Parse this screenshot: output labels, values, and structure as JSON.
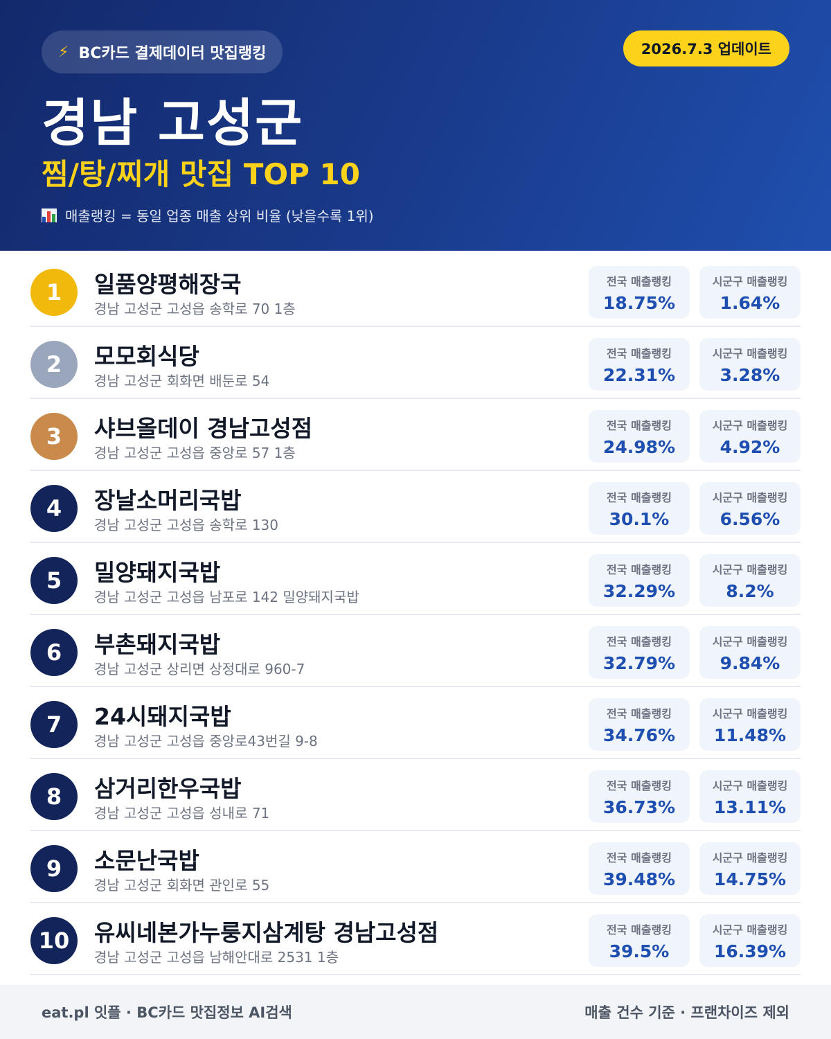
{
  "header": {
    "brand_icon": "lightning-icon",
    "brand_label": "BC카드 결제데이터 맛집랭킹",
    "date_label": "2026.7.3 업데이트",
    "title": "경남 고성군",
    "subtitle": "찜/탕/찌개 맛집 TOP 10",
    "note_icon": "bar-chart-icon",
    "note": "매출랭킹 = 동일 업종 매출 상위 비율 (낮을수록 1위)"
  },
  "colors": {
    "header_bg": "#1a3c8e",
    "accent_yellow": "#fcd21a",
    "gold": "#f0b90b",
    "silver": "#9aa6bb",
    "bronze": "#c98a4b",
    "navy": "#13245a",
    "value_blue": "#1e4fb0"
  },
  "stat_labels": {
    "national": "전국 매출랭킹",
    "local": "시군구 매출랭킹"
  },
  "restaurants": [
    {
      "rank": "1",
      "name": "일품양평해장국",
      "address": "경남 고성군 고성읍 송학로 70 1층",
      "national": "18.75%",
      "local": "1.64%"
    },
    {
      "rank": "2",
      "name": "모모회식당",
      "address": "경남 고성군 회화면 배둔로 54",
      "national": "22.31%",
      "local": "3.28%"
    },
    {
      "rank": "3",
      "name": "샤브올데이 경남고성점",
      "address": "경남 고성군 고성읍 중앙로 57 1층",
      "national": "24.98%",
      "local": "4.92%"
    },
    {
      "rank": "4",
      "name": "장날소머리국밥",
      "address": "경남 고성군 고성읍 송학로 130",
      "national": "30.1%",
      "local": "6.56%"
    },
    {
      "rank": "5",
      "name": "밀양돼지국밥",
      "address": "경남 고성군 고성읍 남포로 142 밀양돼지국밥",
      "national": "32.29%",
      "local": "8.2%"
    },
    {
      "rank": "6",
      "name": "부촌돼지국밥",
      "address": "경남 고성군 상리면 상정대로 960-7",
      "national": "32.79%",
      "local": "9.84%"
    },
    {
      "rank": "7",
      "name": "24시돼지국밥",
      "address": "경남 고성군 고성읍 중앙로43번길 9-8",
      "national": "34.76%",
      "local": "11.48%"
    },
    {
      "rank": "8",
      "name": "삼거리한우국밥",
      "address": "경남 고성군 고성읍 성내로 71",
      "national": "36.73%",
      "local": "13.11%"
    },
    {
      "rank": "9",
      "name": "소문난국밥",
      "address": "경남 고성군 회화면 관인로 55",
      "national": "39.48%",
      "local": "14.75%"
    },
    {
      "rank": "10",
      "name": "유씨네본가누룽지삼계탕 경남고성점",
      "address": "경남 고성군 고성읍 남해안대로 2531 1층",
      "national": "39.5%",
      "local": "16.39%"
    }
  ],
  "footer": {
    "left": "eat.pl 잇플 · BC카드 맛집정보 AI검색",
    "right": "매출 건수 기준 · 프랜차이즈 제외"
  }
}
